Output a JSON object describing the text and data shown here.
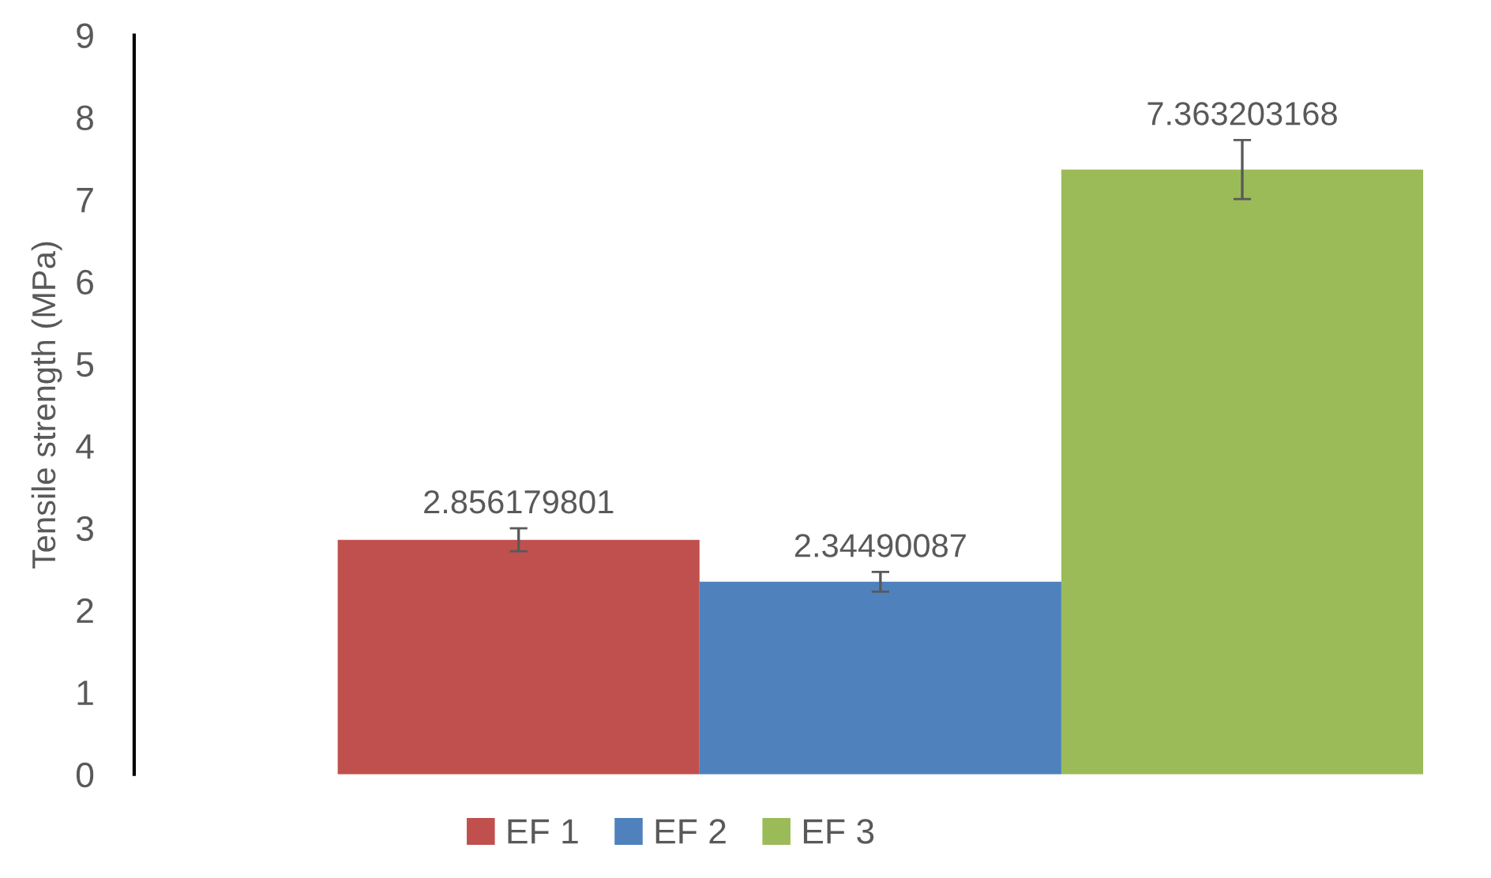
{
  "chart_data": {
    "type": "bar",
    "ylabel": "Tensile strength (MPa)",
    "categories": [
      null
    ],
    "series": [
      {
        "name": "EF 1",
        "color": "#c0504d",
        "values": [
          2.856179801
        ],
        "errors": [
          0.14
        ]
      },
      {
        "name": "EF 2",
        "color": "#4f81bd",
        "values": [
          2.34490087
        ],
        "errors": [
          0.12
        ]
      },
      {
        "name": "EF 3",
        "color": "#9bbb59",
        "values": [
          7.363203168
        ],
        "errors": [
          0.36
        ]
      }
    ],
    "ylim": [
      0,
      9
    ],
    "yticks": [
      0,
      1,
      2,
      3,
      4,
      5,
      6,
      7,
      8,
      9
    ],
    "grid": false,
    "legend": "bottom",
    "data_labels": true
  }
}
